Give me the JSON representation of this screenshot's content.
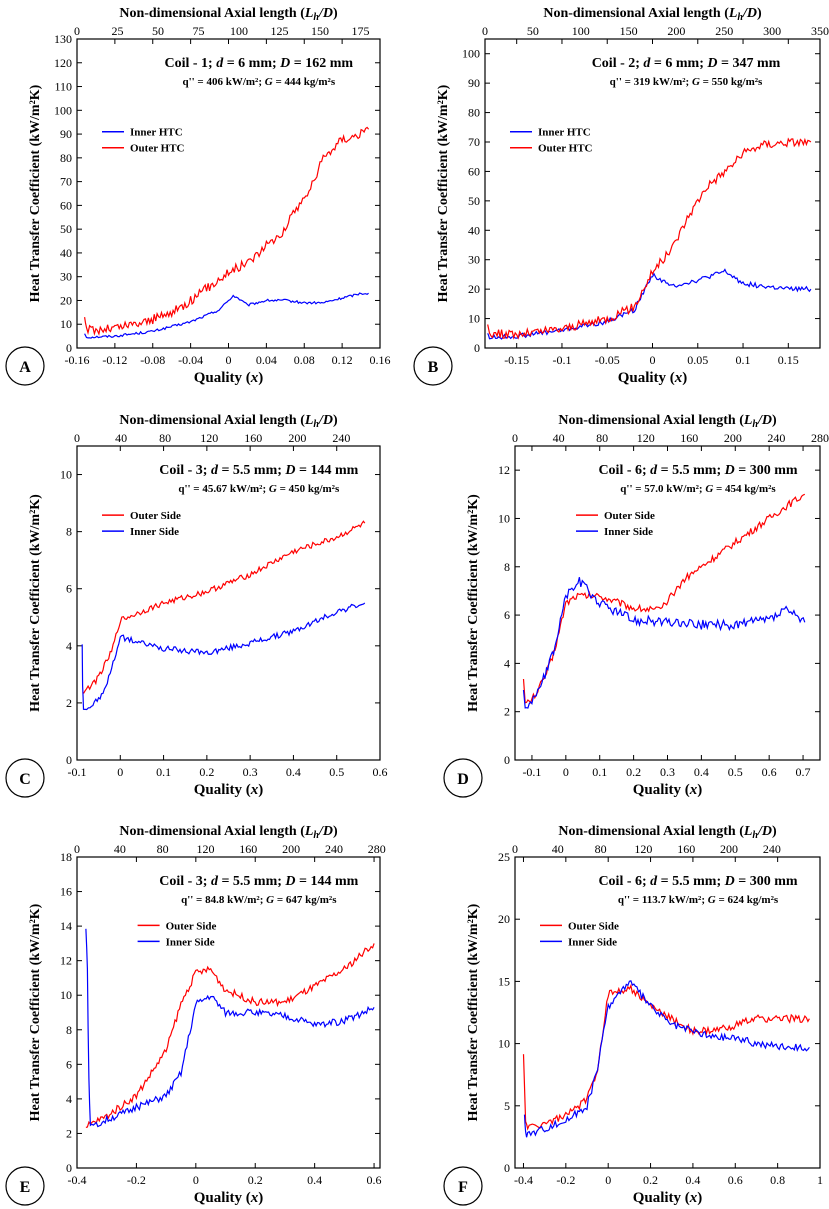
{
  "colors": {
    "red": "#ff0000",
    "blue": "#0000ff"
  },
  "chart_data": [
    {
      "panel_label": "A",
      "type": "line",
      "title_main": "Coil - 1; d = 6 mm; D = 162 mm",
      "title_sub": "q'' = 406 kW/m²; G = 444 kg/m²s",
      "xlabel": "Quality (x)",
      "ylabel": "Heat Transfer Coefficient (kW/m²K)",
      "top_xlabel": "Non-dimensional Axial length (Lh/D)",
      "xlim": [
        -0.16,
        0.16
      ],
      "ylim": [
        0,
        130
      ],
      "xticks": [
        -0.16,
        -0.12,
        -0.08,
        -0.04,
        0,
        0.04,
        0.08,
        0.12,
        0.16
      ],
      "xtick_labels": [
        "-0.16",
        "-0.12",
        "-0.08",
        "-0.04",
        "0",
        "0.04",
        "0.08",
        "0.12",
        "0.16"
      ],
      "yticks": [
        0,
        10,
        20,
        30,
        40,
        50,
        60,
        70,
        80,
        90,
        100,
        110,
        120,
        130
      ],
      "ytick_labels": [
        "0",
        "10",
        "20",
        "30",
        "40",
        "50",
        "60",
        "70",
        "80",
        "90",
        "100",
        "110",
        "120",
        "130"
      ],
      "top_ticks": [
        0,
        25,
        50,
        75,
        100,
        125,
        150,
        175
      ],
      "top_tick_labels": [
        "0",
        "25",
        "50",
        "75",
        "100",
        "125",
        "150",
        "175"
      ],
      "top_xlim": [
        0,
        187
      ],
      "legend": "left",
      "series": [
        {
          "name": "Inner HTC",
          "color": "#0000ff",
          "noise": 0.5,
          "x": [
            -0.152,
            -0.15,
            -0.12,
            -0.08,
            -0.04,
            -0.01,
            0.005,
            0.01,
            0.02,
            0.04,
            0.06,
            0.08,
            0.1,
            0.12,
            0.14,
            0.148
          ],
          "y": [
            6,
            4.5,
            5,
            7,
            11,
            16,
            22,
            21,
            18,
            20,
            20,
            19,
            19,
            21,
            23,
            23
          ]
        },
        {
          "name": "Outer HTC",
          "color": "#ff0000",
          "noise": 2,
          "x": [
            -0.152,
            -0.15,
            -0.14,
            -0.12,
            -0.1,
            -0.08,
            -0.06,
            -0.04,
            -0.02,
            0,
            0.02,
            0.04,
            0.06,
            0.07,
            0.08,
            0.09,
            0.1,
            0.12,
            0.14,
            0.148
          ],
          "y": [
            13,
            8,
            7.5,
            8.5,
            10,
            12,
            15,
            20,
            26,
            32,
            36,
            43,
            50,
            58,
            63,
            70,
            80,
            88,
            90,
            92
          ]
        }
      ]
    },
    {
      "panel_label": "B",
      "type": "line",
      "title_main": "Coil - 2; d = 6 mm; D = 347 mm",
      "title_sub": "q'' = 319 kW/m²; G = 550 kg/m²s",
      "xlabel": "Quality (x)",
      "ylabel": "Heat Transfer Coefficient (kW/m²K)",
      "top_xlabel": "Non-dimensional Axial length (Lh/D)",
      "xlim": [
        -0.185,
        0.185
      ],
      "ylim": [
        0,
        105
      ],
      "xticks": [
        -0.15,
        -0.1,
        -0.05,
        0,
        0.05,
        0.1,
        0.15
      ],
      "xtick_labels": [
        "-0.15",
        "-0.1",
        "-0.05",
        "0",
        "0.05",
        "0.1",
        "0.15"
      ],
      "yticks": [
        0,
        10,
        20,
        30,
        40,
        50,
        60,
        70,
        80,
        90,
        100
      ],
      "ytick_labels": [
        "0",
        "10",
        "20",
        "30",
        "40",
        "50",
        "60",
        "70",
        "80",
        "90",
        "100"
      ],
      "top_ticks": [
        0,
        50,
        100,
        150,
        200,
        250,
        300,
        350
      ],
      "top_tick_labels": [
        "0",
        "50",
        "100",
        "150",
        "200",
        "250",
        "300",
        "350"
      ],
      "top_xlim": [
        0,
        350
      ],
      "legend": "left",
      "series": [
        {
          "name": "Inner HTC",
          "color": "#0000ff",
          "noise": 0.8,
          "x": [
            -0.182,
            -0.18,
            -0.15,
            -0.1,
            -0.05,
            -0.02,
            0,
            0.02,
            0.05,
            0.08,
            0.1,
            0.12,
            0.15,
            0.175
          ],
          "y": [
            5,
            3.5,
            4,
            6,
            9,
            13,
            25,
            21,
            23,
            26,
            22,
            21,
            20,
            20
          ]
        },
        {
          "name": "Outer HTC",
          "color": "#ff0000",
          "noise": 1.5,
          "x": [
            -0.182,
            -0.18,
            -0.15,
            -0.1,
            -0.05,
            -0.02,
            0,
            0.02,
            0.04,
            0.06,
            0.08,
            0.1,
            0.12,
            0.15,
            0.175
          ],
          "y": [
            8,
            5,
            4.5,
            6.5,
            10,
            14,
            26,
            33,
            45,
            55,
            60,
            66,
            69,
            70,
            70
          ]
        }
      ]
    },
    {
      "panel_label": "C",
      "type": "line",
      "title_main": "Coil - 3; d = 5.5 mm; D = 144 mm",
      "title_sub": "q'' = 45.67 kW/m²; G = 450 kg/m²s",
      "xlabel": "Quality (x)",
      "ylabel": "Heat Transfer Coefficient (kW/m²K)",
      "top_xlabel": "Non-dimensional Axial length (Lh/D)",
      "xlim": [
        -0.1,
        0.6
      ],
      "ylim": [
        0,
        11
      ],
      "xticks": [
        -0.1,
        0,
        0.1,
        0.2,
        0.3,
        0.4,
        0.5,
        0.6
      ],
      "xtick_labels": [
        "-0.1",
        "0",
        "0.1",
        "0.2",
        "0.3",
        "0.4",
        "0.5",
        "0.6"
      ],
      "yticks": [
        0,
        2,
        4,
        6,
        8,
        10
      ],
      "ytick_labels": [
        "0",
        "2",
        "4",
        "6",
        "8",
        "10"
      ],
      "top_ticks": [
        0,
        40,
        80,
        120,
        160,
        200,
        240
      ],
      "top_tick_labels": [
        "0",
        "40",
        "80",
        "120",
        "160",
        "200",
        "240"
      ],
      "top_xlim": [
        0,
        275
      ],
      "legend": "left-upper",
      "series": [
        {
          "name": "Outer Side",
          "color": "#ff0000",
          "noise": 0.1,
          "x": [
            -0.085,
            -0.06,
            -0.04,
            -0.02,
            0,
            0.05,
            0.1,
            0.2,
            0.3,
            0.4,
            0.5,
            0.565
          ],
          "y": [
            2.4,
            2.7,
            3.2,
            3.8,
            4.9,
            5.2,
            5.5,
            5.9,
            6.5,
            7.3,
            7.8,
            8.3
          ]
        },
        {
          "name": "Inner Side",
          "color": "#0000ff",
          "noise": 0.1,
          "x": [
            -0.088,
            -0.087,
            -0.085,
            -0.07,
            -0.04,
            -0.02,
            0,
            0.05,
            0.1,
            0.2,
            0.3,
            0.4,
            0.5,
            0.565
          ],
          "y": [
            4.05,
            2.6,
            1.8,
            1.85,
            2.3,
            3.2,
            4.3,
            4.1,
            3.9,
            3.75,
            4.1,
            4.5,
            5.2,
            5.5
          ]
        }
      ]
    },
    {
      "panel_label": "D",
      "type": "line",
      "title_main": "Coil - 6; d = 5.5 mm; D = 300 mm",
      "title_sub": "q'' = 57.0 kW/m²; G = 454 kg/m²s",
      "xlabel": "Quality (x)",
      "ylabel": "Heat Transfer Coefficient (kW/m²K)",
      "top_xlabel": "Non-dimensional Axial length (Lh/D)",
      "xlim": [
        -0.15,
        0.75
      ],
      "ylim": [
        0,
        13
      ],
      "xticks": [
        -0.1,
        0,
        0.1,
        0.2,
        0.3,
        0.4,
        0.5,
        0.6,
        0.7
      ],
      "xtick_labels": [
        "-0.1",
        "0",
        "0.1",
        "0.2",
        "0.3",
        "0.4",
        "0.5",
        "0.6",
        "0.7"
      ],
      "yticks": [
        0,
        2,
        4,
        6,
        8,
        10,
        12
      ],
      "ytick_labels": [
        "0",
        "2",
        "4",
        "6",
        "8",
        "10",
        "12"
      ],
      "top_ticks": [
        0,
        40,
        80,
        120,
        160,
        200,
        240,
        280
      ],
      "top_tick_labels": [
        "0",
        "40",
        "80",
        "120",
        "160",
        "200",
        "240",
        "280"
      ],
      "top_xlim": [
        0,
        280
      ],
      "legend": "center",
      "series": [
        {
          "name": "Outer Side",
          "color": "#ff0000",
          "noise": 0.15,
          "x": [
            -0.125,
            -0.12,
            -0.1,
            -0.07,
            -0.04,
            -0.02,
            0,
            0.03,
            0.1,
            0.2,
            0.28,
            0.35,
            0.45,
            0.55,
            0.65,
            0.705
          ],
          "y": [
            3.5,
            2.3,
            2.5,
            3.2,
            4.2,
            5.3,
            6.5,
            6.8,
            6.8,
            6.3,
            6.2,
            7.5,
            8.5,
            9.5,
            10.5,
            11
          ]
        },
        {
          "name": "Inner Side",
          "color": "#0000ff",
          "noise": 0.2,
          "x": [
            -0.125,
            -0.12,
            -0.1,
            -0.07,
            -0.04,
            -0.02,
            0,
            0.04,
            0.1,
            0.2,
            0.3,
            0.4,
            0.5,
            0.6,
            0.65,
            0.705
          ],
          "y": [
            3,
            2.2,
            2.4,
            3.2,
            4.3,
            5.5,
            6.8,
            7.4,
            6.5,
            5.8,
            5.7,
            5.6,
            5.6,
            5.8,
            6.2,
            5.7
          ]
        }
      ]
    },
    {
      "panel_label": "E",
      "type": "line",
      "title_main": "Coil - 3; d = 5.5 mm; D = 144 mm",
      "title_sub": "q'' = 84.8 kW/m²; G = 647 kg/m²s",
      "xlabel": "Quality (x)",
      "ylabel": "Heat Transfer Coefficient (kW/m²K)",
      "top_xlabel": "Non-dimensional Axial length (Lh/D)",
      "xlim": [
        -0.4,
        0.62
      ],
      "ylim": [
        0,
        18
      ],
      "xticks": [
        -0.4,
        -0.2,
        0,
        0.2,
        0.4,
        0.6
      ],
      "xtick_labels": [
        "-0.4",
        "-0.2",
        "0",
        "0.2",
        "0.4",
        "0.6"
      ],
      "yticks": [
        0,
        2,
        4,
        6,
        8,
        10,
        12,
        14,
        16,
        18
      ],
      "ytick_labels": [
        "0",
        "2",
        "4",
        "6",
        "8",
        "10",
        "12",
        "14",
        "16",
        "18"
      ],
      "top_ticks": [
        0,
        40,
        80,
        120,
        160,
        200,
        240,
        280
      ],
      "top_tick_labels": [
        "0",
        "40",
        "80",
        "120",
        "160",
        "200",
        "240",
        "280"
      ],
      "top_xlim": [
        0,
        283
      ],
      "legend": "center",
      "series": [
        {
          "name": "Outer Side",
          "color": "#ff0000",
          "noise": 0.2,
          "x": [
            -0.37,
            -0.36,
            -0.3,
            -0.2,
            -0.1,
            -0.05,
            0,
            0.05,
            0.1,
            0.2,
            0.3,
            0.4,
            0.5,
            0.6
          ],
          "y": [
            2.2,
            2.5,
            3,
            4.2,
            6.8,
            9.5,
            11.3,
            11.5,
            10.3,
            9.6,
            9.6,
            10.5,
            11.5,
            13
          ]
        },
        {
          "name": "Inner Side",
          "color": "#0000ff",
          "noise": 0.2,
          "x": [
            -0.37,
            -0.365,
            -0.36,
            -0.355,
            -0.3,
            -0.2,
            -0.1,
            -0.05,
            0,
            0.05,
            0.1,
            0.2,
            0.3,
            0.4,
            0.5,
            0.6
          ],
          "y": [
            14,
            11.5,
            5,
            2.3,
            2.8,
            3.5,
            4.2,
            5.5,
            9.5,
            10,
            9,
            9,
            8.8,
            8.3,
            8.5,
            9.3
          ]
        }
      ]
    },
    {
      "panel_label": "F",
      "type": "line",
      "title_main": "Coil - 6; d = 5.5 mm; D = 300 mm",
      "title_sub": "q'' = 113.7 kW/m²; G = 624 kg/m²s",
      "xlabel": "Quality (x)",
      "ylabel": "Heat Transfer Coefficient (kW/m²K)",
      "top_xlabel": "Non-dimensional Axial length (Lh/D)",
      "xlim": [
        -0.44,
        1.0
      ],
      "ylim": [
        0,
        25
      ],
      "xticks": [
        -0.4,
        -0.2,
        0,
        0.2,
        0.4,
        0.6,
        0.8,
        1
      ],
      "xtick_labels": [
        "-0.4",
        "-0.2",
        "0",
        "0.2",
        "0.4",
        "0.6",
        "0.8",
        "1"
      ],
      "yticks": [
        0,
        5,
        10,
        15,
        20,
        25
      ],
      "ytick_labels": [
        "0",
        "5",
        "10",
        "15",
        "20",
        "25"
      ],
      "top_ticks": [
        0,
        40,
        80,
        120,
        160,
        200,
        240
      ],
      "top_tick_labels": [
        "0",
        "40",
        "80",
        "120",
        "160",
        "200",
        "240"
      ],
      "top_xlim": [
        0,
        285
      ],
      "legend": "left-upper",
      "series": [
        {
          "name": "Outer Side",
          "color": "#ff0000",
          "noise": 0.3,
          "x": [
            -0.4,
            -0.39,
            -0.38,
            -0.3,
            -0.2,
            -0.1,
            -0.05,
            0,
            0.1,
            0.2,
            0.3,
            0.4,
            0.5,
            0.6,
            0.7,
            0.8,
            0.95
          ],
          "y": [
            9,
            4,
            3.2,
            3.6,
            4.2,
            5.5,
            8,
            14,
            14.5,
            13,
            12,
            11,
            11,
            11.5,
            12,
            12,
            12
          ]
        },
        {
          "name": "Inner Side",
          "color": "#0000ff",
          "noise": 0.3,
          "x": [
            -0.395,
            -0.39,
            -0.38,
            -0.3,
            -0.2,
            -0.1,
            -0.05,
            0,
            0.1,
            0.2,
            0.3,
            0.4,
            0.5,
            0.6,
            0.7,
            0.8,
            0.95
          ],
          "y": [
            4,
            2.8,
            2.7,
            3.2,
            3.8,
            5,
            8,
            13,
            15,
            13,
            11.5,
            11,
            10.5,
            10.5,
            10,
            9.8,
            9.7
          ]
        }
      ]
    }
  ]
}
